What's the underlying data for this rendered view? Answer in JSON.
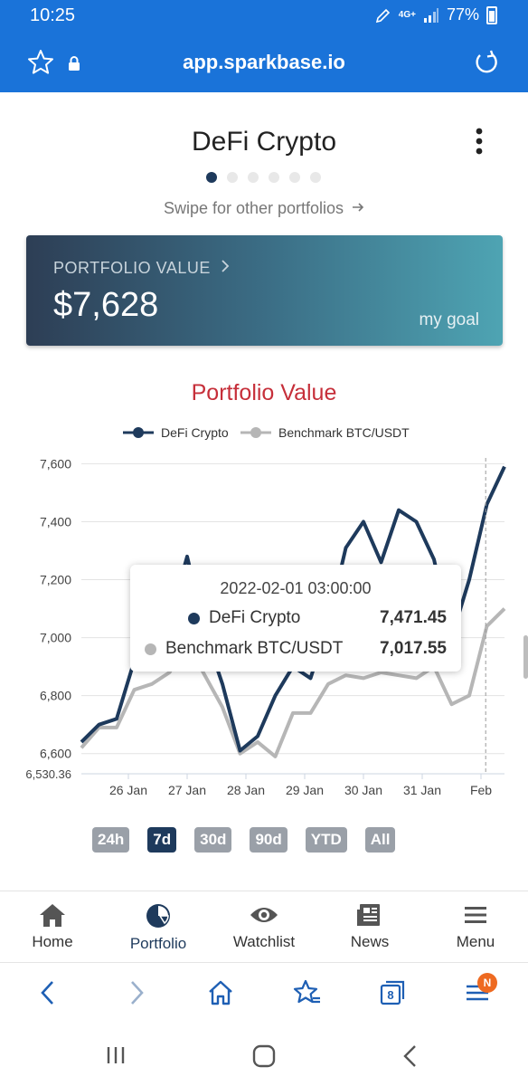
{
  "status_bar": {
    "time": "10:25",
    "network": "4G+",
    "battery": "77%"
  },
  "browser": {
    "url": "app.sparkbase.io",
    "tab_count": "8",
    "notification_badge": "N"
  },
  "portfolio": {
    "title": "DeFi Crypto",
    "swipe_hint": "Swipe for other portfolios",
    "page_count": 6,
    "active_page": 0
  },
  "value_card": {
    "label": "PORTFOLIO VALUE",
    "value": "$7,628",
    "goal_label": "my goal"
  },
  "chart_data": {
    "type": "line",
    "title": "Portfolio Value",
    "legend_position": "top-center",
    "grid": true,
    "x_tick_labels": [
      "26 Jan",
      "27 Jan",
      "28 Jan",
      "29 Jan",
      "30 Jan",
      "31 Jan",
      "Feb"
    ],
    "y_tick_labels": [
      "7,600",
      "7,400",
      "7,200",
      "7,000",
      "6,800",
      "6,600",
      "6,530.36"
    ],
    "ylim": [
      6530.36,
      7620
    ],
    "xlim_days": [
      25.2,
      32.4
    ],
    "series": [
      {
        "name": "DeFi Crypto",
        "color": "#1e3a5c",
        "x": [
          25.2,
          25.5,
          25.8,
          26.1,
          26.4,
          26.7,
          27.0,
          27.3,
          27.6,
          27.9,
          28.2,
          28.5,
          28.8,
          29.1,
          29.4,
          29.7,
          30.0,
          30.3,
          30.6,
          30.9,
          31.2,
          31.5,
          31.8,
          32.1,
          32.4
        ],
        "y": [
          6640,
          6700,
          6720,
          6920,
          6960,
          7060,
          7280,
          7020,
          6840,
          6610,
          6660,
          6800,
          6900,
          6860,
          7050,
          7310,
          7400,
          7260,
          7440,
          7400,
          7270,
          7000,
          7200,
          7460,
          7590
        ]
      },
      {
        "name": "Benchmark BTC/USDT",
        "color": "#b6b6b6",
        "x": [
          25.2,
          25.5,
          25.8,
          26.1,
          26.4,
          26.7,
          27.0,
          27.3,
          27.6,
          27.9,
          28.2,
          28.5,
          28.8,
          29.1,
          29.4,
          29.7,
          30.0,
          30.3,
          30.6,
          30.9,
          31.2,
          31.5,
          31.8,
          32.1,
          32.4
        ],
        "y": [
          6620,
          6690,
          6690,
          6820,
          6840,
          6880,
          6980,
          6870,
          6760,
          6600,
          6640,
          6590,
          6740,
          6740,
          6840,
          6870,
          6860,
          6880,
          6870,
          6860,
          6900,
          6770,
          6800,
          7040,
          7100
        ]
      }
    ],
    "cursor_x": 32.08
  },
  "tooltip": {
    "date": "2022-02-01 03:00:00",
    "rows": [
      {
        "name": "DeFi Crypto",
        "value": "7,471.45",
        "color": "#1e3a5c"
      },
      {
        "name": "Benchmark BTC/USDT",
        "value": "7,017.55",
        "color": "#b6b6b6"
      }
    ]
  },
  "ranges": {
    "items": [
      "24h",
      "7d",
      "30d",
      "90d",
      "YTD",
      "All"
    ],
    "active": "7d"
  },
  "bottom_nav": [
    {
      "label": "Home",
      "icon": "home-icon"
    },
    {
      "label": "Portfolio",
      "icon": "pie-chart-icon"
    },
    {
      "label": "Watchlist",
      "icon": "eye-icon"
    },
    {
      "label": "News",
      "icon": "newspaper-icon"
    },
    {
      "label": "Menu",
      "icon": "hamburger-icon"
    }
  ]
}
